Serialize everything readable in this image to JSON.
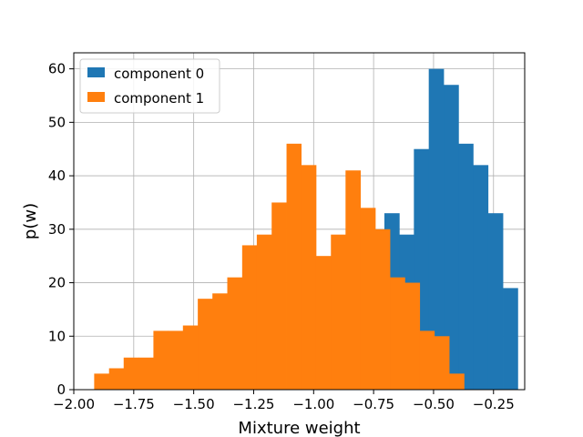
{
  "chart_data": {
    "type": "bar",
    "xlabel": "Mixture weight",
    "ylabel": "p(w)",
    "xlim": [
      -2.0,
      -0.12
    ],
    "ylim": [
      0,
      63
    ],
    "grid": true,
    "legend_position": "top-left",
    "x_ticks": [
      -2.0,
      -1.75,
      -1.5,
      -1.25,
      -1.0,
      -0.75,
      -0.5,
      -0.25
    ],
    "x_tick_labels": [
      "−2.00",
      "−1.75",
      "−1.50",
      "−1.25",
      "−1.00",
      "−0.75",
      "−0.50",
      "−0.25"
    ],
    "y_ticks": [
      0,
      10,
      20,
      30,
      40,
      50,
      60
    ],
    "y_tick_labels": [
      "0",
      "10",
      "20",
      "30",
      "40",
      "50",
      "60"
    ],
    "series": [
      {
        "name": "component 0",
        "color": "#1f77b4",
        "bin_edges": [
          -0.705,
          -0.643,
          -0.582,
          -0.52,
          -0.458,
          -0.396,
          -0.335,
          -0.273,
          -0.211,
          -0.149
        ],
        "counts": [
          33,
          29,
          45,
          60,
          57,
          46,
          42,
          33,
          19
        ]
      },
      {
        "name": "component 1",
        "color": "#ff7f0e",
        "bin_edges": [
          -1.915,
          -1.853,
          -1.792,
          -1.73,
          -1.668,
          -1.607,
          -1.545,
          -1.483,
          -1.422,
          -1.36,
          -1.298,
          -1.237,
          -1.175,
          -1.113,
          -1.052,
          -0.99,
          -0.928,
          -0.867,
          -0.805,
          -0.743,
          -0.682,
          -0.62,
          -0.558,
          -0.497,
          -0.435,
          -0.373,
          -0.312,
          -0.25
        ],
        "counts": [
          3,
          4,
          6,
          6,
          11,
          11,
          12,
          17,
          18,
          21,
          27,
          29,
          35,
          46,
          42,
          25,
          29,
          41,
          34,
          30,
          21,
          20,
          11,
          10,
          3,
          0,
          0
        ]
      }
    ]
  }
}
